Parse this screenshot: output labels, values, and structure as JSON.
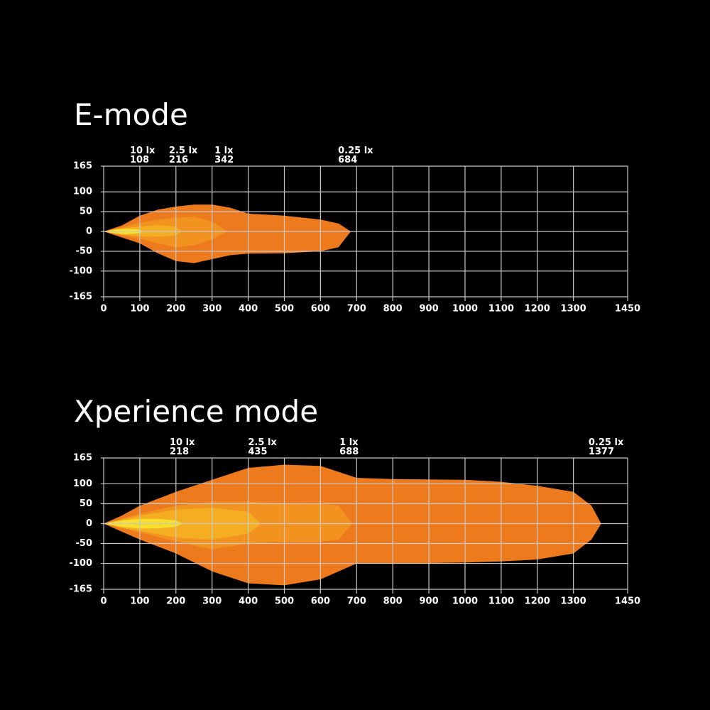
{
  "chart_data": [
    {
      "type": "beam",
      "title": "E-mode",
      "xlim": [
        0,
        1450
      ],
      "xticks": [
        0,
        100,
        200,
        300,
        400,
        500,
        600,
        700,
        800,
        900,
        1000,
        1100,
        1200,
        1300,
        1450
      ],
      "ylim": [
        -165,
        165
      ],
      "yticks": [
        165,
        100,
        50,
        0,
        -50,
        -100,
        -165
      ],
      "grid": true,
      "series": [
        {
          "name": "0.25 lx",
          "distance": 684,
          "color": "#ee7a1e",
          "x": [
            0,
            50,
            100,
            150,
            200,
            250,
            300,
            350,
            400,
            500,
            600,
            650,
            684
          ],
          "upper": [
            0,
            15,
            40,
            55,
            63,
            68,
            68,
            60,
            45,
            40,
            30,
            20,
            0
          ],
          "lower": [
            0,
            -15,
            -30,
            -55,
            -75,
            -80,
            -70,
            -60,
            -56,
            -55,
            -50,
            -40,
            0
          ]
        },
        {
          "name": "1 lx",
          "distance": 342,
          "color": "#f2921f",
          "x": [
            0,
            50,
            100,
            150,
            200,
            250,
            300,
            342
          ],
          "upper": [
            0,
            10,
            22,
            30,
            35,
            37,
            25,
            0
          ],
          "lower": [
            0,
            -10,
            -18,
            -30,
            -40,
            -35,
            -20,
            0
          ]
        },
        {
          "name": "2.5 lx",
          "distance": 216,
          "color": "#f5ae22",
          "x": [
            0,
            50,
            100,
            150,
            200,
            216
          ],
          "upper": [
            0,
            8,
            12,
            16,
            12,
            0
          ],
          "lower": [
            0,
            -8,
            -12,
            -14,
            -10,
            0
          ]
        },
        {
          "name": "10 lx",
          "distance": 108,
          "color": "#f8e02c",
          "x": [
            0,
            30,
            60,
            100,
            108
          ],
          "upper": [
            0,
            5,
            7,
            5,
            0
          ],
          "lower": [
            0,
            -5,
            -7,
            -4,
            0
          ]
        }
      ]
    },
    {
      "type": "beam",
      "title": "Xperience mode",
      "xlim": [
        0,
        1450
      ],
      "xticks": [
        0,
        100,
        200,
        300,
        400,
        500,
        600,
        700,
        800,
        900,
        1000,
        1100,
        1200,
        1300,
        1450
      ],
      "ylim": [
        -165,
        165
      ],
      "yticks": [
        165,
        100,
        50,
        0,
        -50,
        -100,
        -165
      ],
      "grid": true,
      "series": [
        {
          "name": "0.25 lx",
          "distance": 1377,
          "color": "#ee7a1e",
          "x": [
            0,
            50,
            100,
            200,
            300,
            400,
            500,
            600,
            700,
            800,
            1000,
            1100,
            1200,
            1300,
            1350,
            1377
          ],
          "upper": [
            0,
            20,
            45,
            80,
            110,
            140,
            148,
            145,
            115,
            112,
            110,
            105,
            95,
            80,
            45,
            0
          ],
          "lower": [
            0,
            -20,
            -40,
            -75,
            -120,
            -150,
            -155,
            -140,
            -100,
            -100,
            -98,
            -95,
            -90,
            -75,
            -40,
            0
          ]
        },
        {
          "name": "1 lx",
          "distance": 688,
          "color": "#f2921f",
          "x": [
            0,
            50,
            100,
            200,
            300,
            400,
            500,
            600,
            650,
            688
          ],
          "upper": [
            0,
            12,
            25,
            45,
            55,
            55,
            52,
            50,
            45,
            0
          ],
          "lower": [
            0,
            -12,
            -22,
            -45,
            -65,
            -50,
            -45,
            -45,
            -40,
            0
          ]
        },
        {
          "name": "2.5 lx",
          "distance": 435,
          "color": "#f5ae22",
          "x": [
            0,
            50,
            100,
            200,
            300,
            400,
            435
          ],
          "upper": [
            0,
            10,
            20,
            35,
            40,
            30,
            0
          ],
          "lower": [
            0,
            -10,
            -18,
            -35,
            -40,
            -25,
            0
          ]
        },
        {
          "name": "10 lx",
          "distance": 218,
          "color": "#f8e02c",
          "x": [
            0,
            50,
            100,
            150,
            200,
            218
          ],
          "upper": [
            0,
            8,
            12,
            12,
            8,
            0
          ],
          "lower": [
            0,
            -8,
            -12,
            -12,
            -8,
            0
          ]
        }
      ]
    }
  ]
}
